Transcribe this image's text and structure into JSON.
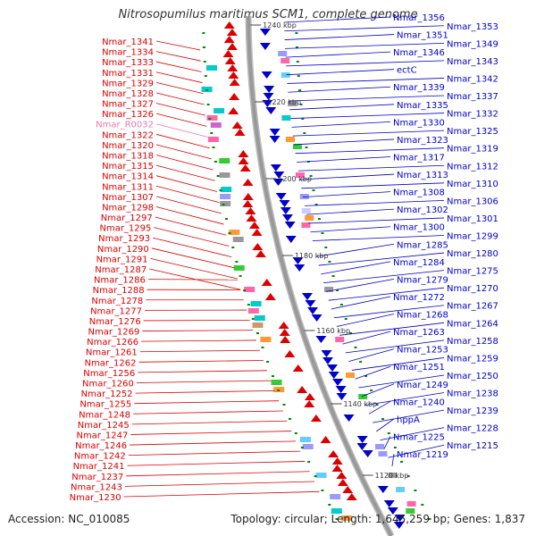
{
  "title": "Nitrosopumilus maritimus SCM1, complete genome",
  "accession": "Accession: NC_010085",
  "stats": "Topology: circular; Length: 1,645,259 bp; Genes: 1,837",
  "colors": {
    "forward": "#dd0000",
    "reverse": "#0000cc",
    "rna": "#ee77aa",
    "backbone": "#999999",
    "tick": "#008800"
  },
  "kbp_labels": [
    "1240 kbp",
    "1220 kbp",
    "1200 kbp",
    "1180 kbp",
    "1160 kbp",
    "1140 kbp",
    "1120 kbp"
  ],
  "left_labels": [
    "Nmar_1341",
    "Nmar_1334",
    "Nmar_1333",
    "Nmar_1331",
    "Nmar_1329",
    "Nmar_1328",
    "Nmar_1327",
    "Nmar_1326",
    "Nmar_R0032",
    "Nmar_1322",
    "Nmar_1320",
    "Nmar_1318",
    "Nmar_1315",
    "Nmar_1314",
    "Nmar_1311",
    "Nmar_1307",
    "Nmar_1298",
    "Nmar_1297",
    "Nmar_1295",
    "Nmar_1293",
    "Nmar_1290",
    "Nmar_1291",
    "Nmar_1287",
    "Nmar_1286",
    "Nmar_1288",
    "Nmar_1278",
    "Nmar_1277",
    "Nmar_1276",
    "Nmar_1269",
    "Nmar_1266",
    "Nmar_1261",
    "Nmar_1262",
    "Nmar_1256",
    "Nmar_1260",
    "Nmar_1252",
    "Nmar_1255",
    "Nmar_1248",
    "Nmar_1245",
    "Nmar_1247",
    "Nmar_1246",
    "Nmar_1242",
    "Nmar_1241",
    "Nmar_1237",
    "Nmar_1243",
    "Nmar_1230"
  ],
  "right_labels": [
    "Nmar_1356",
    "Nmar_1353",
    "Nmar_1351",
    "Nmar_1349",
    "Nmar_1346",
    "Nmar_1343",
    "ectC",
    "Nmar_1342",
    "Nmar_1339",
    "Nmar_1337",
    "Nmar_1335",
    "Nmar_1332",
    "Nmar_1330",
    "Nmar_1325",
    "Nmar_1323",
    "Nmar_1319",
    "Nmar_1317",
    "Nmar_1312",
    "Nmar_1313",
    "Nmar_1310",
    "Nmar_1308",
    "Nmar_1306",
    "Nmar_1302",
    "Nmar_1301",
    "Nmar_1300",
    "Nmar_1299",
    "Nmar_1285",
    "Nmar_1280",
    "Nmar_1284",
    "Nmar_1275",
    "Nmar_1279",
    "Nmar_1270",
    "Nmar_1272",
    "Nmar_1267",
    "Nmar_1268",
    "Nmar_1264",
    "Nmar_1263",
    "Nmar_1258",
    "Nmar_1253",
    "Nmar_1259",
    "Nmar_1251",
    "Nmar_1250",
    "Nmar_1249",
    "Nmar_1238",
    "Nmar_1240",
    "Nmar_1239",
    "hppA",
    "Nmar_1228",
    "Nmar_1225",
    "Nmar_1215",
    "Nmar_1219"
  ]
}
